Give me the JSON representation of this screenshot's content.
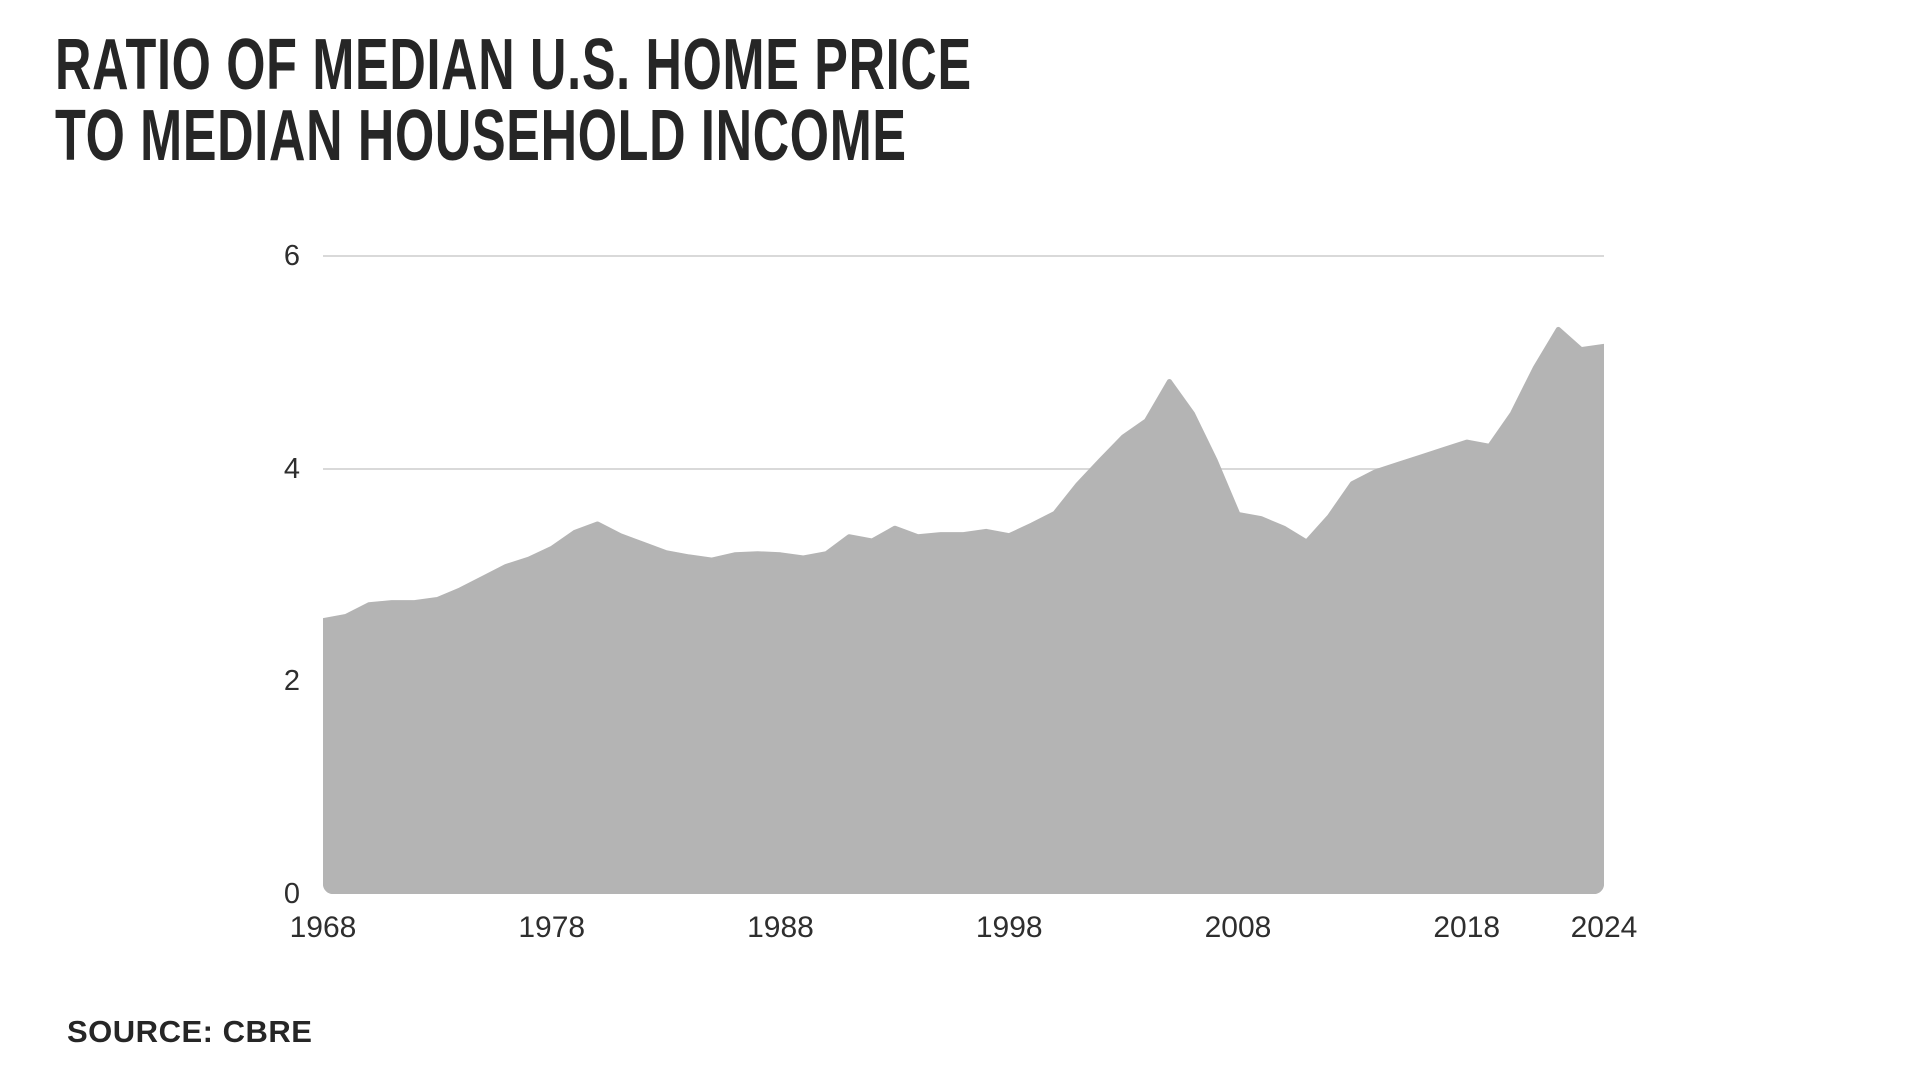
{
  "page": {
    "background": "#ffffff"
  },
  "chart": {
    "title_line1": "RATIO OF MEDIAN U.S. HOME PRICE",
    "title_line2": "TO MEDIAN HOUSEHOLD INCOME",
    "source_label": "SOURCE: CBRE"
  },
  "chart_data": {
    "type": "area",
    "title": "Ratio of median U.S. home price to median household income",
    "source": "CBRE",
    "x": [
      1968,
      1969,
      1970,
      1971,
      1972,
      1973,
      1974,
      1975,
      1976,
      1977,
      1978,
      1979,
      1980,
      1981,
      1982,
      1983,
      1984,
      1985,
      1986,
      1987,
      1988,
      1989,
      1990,
      1991,
      1992,
      1993,
      1994,
      1995,
      1996,
      1997,
      1998,
      1999,
      2000,
      2001,
      2002,
      2003,
      2004,
      2005,
      2006,
      2007,
      2008,
      2009,
      2010,
      2011,
      2012,
      2013,
      2014,
      2015,
      2016,
      2017,
      2018,
      2019,
      2020,
      2021,
      2022,
      2023,
      2024
    ],
    "values": [
      2.57,
      2.61,
      2.72,
      2.74,
      2.74,
      2.77,
      2.86,
      2.97,
      3.08,
      3.15,
      3.25,
      3.4,
      3.48,
      3.37,
      3.29,
      3.21,
      3.17,
      3.14,
      3.19,
      3.2,
      3.19,
      3.16,
      3.2,
      3.36,
      3.32,
      3.44,
      3.36,
      3.38,
      3.38,
      3.41,
      3.37,
      3.47,
      3.58,
      3.85,
      4.08,
      4.3,
      4.45,
      4.82,
      4.52,
      4.08,
      3.57,
      3.53,
      3.44,
      3.31,
      3.55,
      3.86,
      3.97,
      4.04,
      4.11,
      4.18,
      4.25,
      4.21,
      4.52,
      4.95,
      5.31,
      5.12,
      5.15
    ],
    "x_tick_years": [
      1968,
      1978,
      1988,
      1998,
      2008,
      2018,
      2024
    ],
    "x_tick_labels": [
      "1968",
      "1978",
      "1988",
      "1998",
      "2008",
      "2018",
      "2024"
    ],
    "y_ticks": [
      0,
      2,
      4,
      6
    ],
    "gridline_ticks": [
      2,
      4,
      6
    ],
    "ylim": [
      0,
      6
    ],
    "xlim": [
      1968,
      2024
    ],
    "grid": "horizontal-only",
    "legend": "none",
    "area_color": "#b4b4b4",
    "gridline_color": "#d9d9d9",
    "title_color": "#262626",
    "axis_text_color": "#2e2e2e"
  }
}
